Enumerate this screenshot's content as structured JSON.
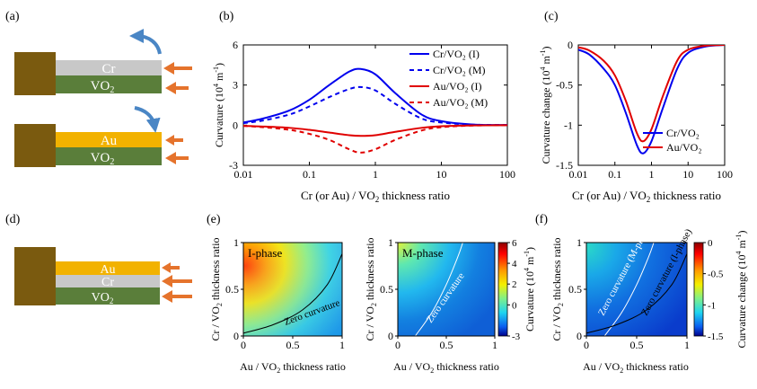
{
  "panels": {
    "a": "(a)",
    "b": "(b)",
    "c": "(c)",
    "d": "(d)",
    "e": "(e)",
    "f": "(f)"
  },
  "schematic_a": {
    "top": {
      "metal": "Cr",
      "oxide": "VO",
      "oxide_sub": "2"
    },
    "bottom": {
      "metal": "Au",
      "oxide": "VO",
      "oxide_sub": "2"
    }
  },
  "schematic_d": {
    "layer1": "Au",
    "layer2": "Cr",
    "layer3": "VO",
    "layer3_sub": "2"
  },
  "colors": {
    "substrate": "#7a5a0f",
    "cr": "#c8c8c8",
    "vo2": "#5a7e3a",
    "au": "#f2b200",
    "arrow": "#e5732c",
    "curl": "#4a86c5"
  },
  "chart_data": [
    {
      "type": "line",
      "panel": "b",
      "xscale": "log",
      "xlim": [
        0.01,
        100
      ],
      "ylim": [
        -3,
        6
      ],
      "xticks": [
        "0.01",
        "0.1",
        "1",
        "10",
        "100"
      ],
      "yticks": [
        "-3",
        "0",
        "3",
        "6"
      ],
      "xlabel": {
        "pre": "Cr (or Au) / VO",
        "sub": "2",
        "post": " thickness ratio"
      },
      "ylabel": {
        "pre": "Curvature (10",
        "sup1": "4",
        "mid": " m",
        "sup2": "-1",
        "post": ")"
      },
      "x": [
        0.01,
        0.02,
        0.05,
        0.1,
        0.2,
        0.4,
        0.6,
        1,
        2,
        5,
        10,
        30,
        100
      ],
      "series": [
        {
          "name": "Cr/VO₂ (I)",
          "color": "#0000ee",
          "dash": "solid",
          "values": [
            0.2,
            0.5,
            1.1,
            1.9,
            3.0,
            4.0,
            4.2,
            3.8,
            2.4,
            0.8,
            0.3,
            0.05,
            0.01
          ]
        },
        {
          "name": "Cr/VO₂ (M)",
          "color": "#0000ee",
          "dash": "dashed",
          "values": [
            0.15,
            0.35,
            0.8,
            1.4,
            2.1,
            2.7,
            2.85,
            2.6,
            1.6,
            0.5,
            0.2,
            0.04,
            0.01
          ]
        },
        {
          "name": "Au/VO₂ (I)",
          "color": "#e00000",
          "dash": "solid",
          "values": [
            -0.05,
            -0.1,
            -0.2,
            -0.35,
            -0.55,
            -0.75,
            -0.8,
            -0.75,
            -0.5,
            -0.2,
            -0.08,
            -0.02,
            0
          ]
        },
        {
          "name": "Au/VO₂ (M)",
          "color": "#e00000",
          "dash": "dashed",
          "values": [
            -0.05,
            -0.15,
            -0.35,
            -0.65,
            -1.1,
            -1.8,
            -2.05,
            -1.8,
            -1.1,
            -0.4,
            -0.15,
            -0.03,
            0
          ]
        }
      ],
      "legend_position": "top-right"
    },
    {
      "type": "line",
      "panel": "c",
      "xscale": "log",
      "xlim": [
        0.01,
        100
      ],
      "ylim": [
        -1.5,
        0
      ],
      "xticks": [
        "0.01",
        "0.1",
        "1",
        "10",
        "100"
      ],
      "yticks": [
        "-1.5",
        "-1",
        "-0.5",
        "0"
      ],
      "xlabel": {
        "pre": "Cr (or Au) / VO",
        "sub": "2",
        "post": " thickness ratio"
      },
      "ylabel": {
        "pre": "Curvature change (10",
        "sup1": "4",
        "mid": " m",
        "sup2": "-1",
        "post": ")"
      },
      "x": [
        0.01,
        0.02,
        0.05,
        0.1,
        0.2,
        0.4,
        0.6,
        1,
        2,
        5,
        10,
        30,
        100
      ],
      "series": [
        {
          "name": "Cr/VO₂",
          "color": "#0000ee",
          "values": [
            -0.06,
            -0.12,
            -0.3,
            -0.5,
            -0.85,
            -1.25,
            -1.35,
            -1.2,
            -0.8,
            -0.3,
            -0.1,
            -0.02,
            0
          ]
        },
        {
          "name": "Au/VO₂",
          "color": "#e00000",
          "values": [
            -0.03,
            -0.07,
            -0.2,
            -0.38,
            -0.7,
            -1.1,
            -1.2,
            -1.05,
            -0.65,
            -0.2,
            -0.06,
            -0.01,
            0
          ]
        }
      ],
      "legend_position": "bottom-right"
    },
    {
      "type": "heatmap",
      "panel": "e-left",
      "label": "I-phase",
      "xlim": [
        0,
        1
      ],
      "ylim": [
        0,
        1
      ],
      "xticks": [
        "0",
        "0.5",
        "1"
      ],
      "yticks": [
        "0",
        "0.5",
        "1"
      ],
      "contour_label": "Zero curvature",
      "contour": [
        [
          0.0,
          0.03
        ],
        [
          0.3,
          0.12
        ],
        [
          0.6,
          0.28
        ],
        [
          0.85,
          0.55
        ],
        [
          1.0,
          0.88
        ]
      ]
    },
    {
      "type": "heatmap",
      "panel": "e-right",
      "label": "M-phase",
      "xlim": [
        0,
        1
      ],
      "ylim": [
        0,
        1
      ],
      "xticks": [
        "0",
        "0.5",
        "1"
      ],
      "yticks": [
        "0",
        "0.5",
        "1"
      ],
      "contour_label": "Zero curvature",
      "contour": [
        [
          0.18,
          0.0
        ],
        [
          0.35,
          0.25
        ],
        [
          0.5,
          0.55
        ],
        [
          0.62,
          0.85
        ],
        [
          0.67,
          1.0
        ]
      ],
      "colorbar": {
        "ticks": [
          "6",
          "4",
          "2",
          "0",
          "-3"
        ],
        "label": {
          "pre": "Curvature (10",
          "sup1": "4",
          "mid": " m",
          "sup2": "-1",
          "post": ")"
        }
      }
    },
    {
      "type": "heatmap",
      "panel": "f",
      "xlim": [
        0,
        1
      ],
      "ylim": [
        0,
        1
      ],
      "xticks": [
        "0",
        "0.5",
        "1"
      ],
      "yticks": [
        "0",
        "0.5",
        "1"
      ],
      "contour_labels": [
        "Zero curvature (M-phase)",
        "Zero curvature (I-phase)"
      ],
      "contour_m": [
        [
          0.18,
          0.0
        ],
        [
          0.35,
          0.25
        ],
        [
          0.5,
          0.55
        ],
        [
          0.62,
          0.85
        ],
        [
          0.67,
          1.0
        ]
      ],
      "contour_i": [
        [
          0.0,
          0.03
        ],
        [
          0.3,
          0.12
        ],
        [
          0.6,
          0.28
        ],
        [
          0.85,
          0.55
        ],
        [
          1.0,
          0.88
        ]
      ],
      "colorbar": {
        "ticks": [
          "0",
          "-0.5",
          "-1",
          "-1.5"
        ],
        "label": {
          "pre": "Curvature change (10",
          "sup1": "4",
          "mid": " m",
          "sup2": "-1",
          "post": ")"
        }
      }
    }
  ],
  "axis_labels": {
    "e_left_y": {
      "pre": "Cr / VO",
      "sub": "2",
      "post": " thickness ratio"
    },
    "e_left_x": {
      "pre": "Au / VO",
      "sub": "2",
      "post": " thickness ratio"
    },
    "e_right_y": {
      "pre": "Cr / VO",
      "sub": "2",
      "post": " thickness ratio"
    },
    "e_right_x": {
      "pre": "Au / VO",
      "sub": "2",
      "post": " thickness ratio"
    },
    "f_y": {
      "pre": "Cr / VO",
      "sub": "2",
      "post": " thickness ratio"
    },
    "f_x": {
      "pre": "Au / VO",
      "sub": "2",
      "post": " thickness ratio"
    }
  }
}
